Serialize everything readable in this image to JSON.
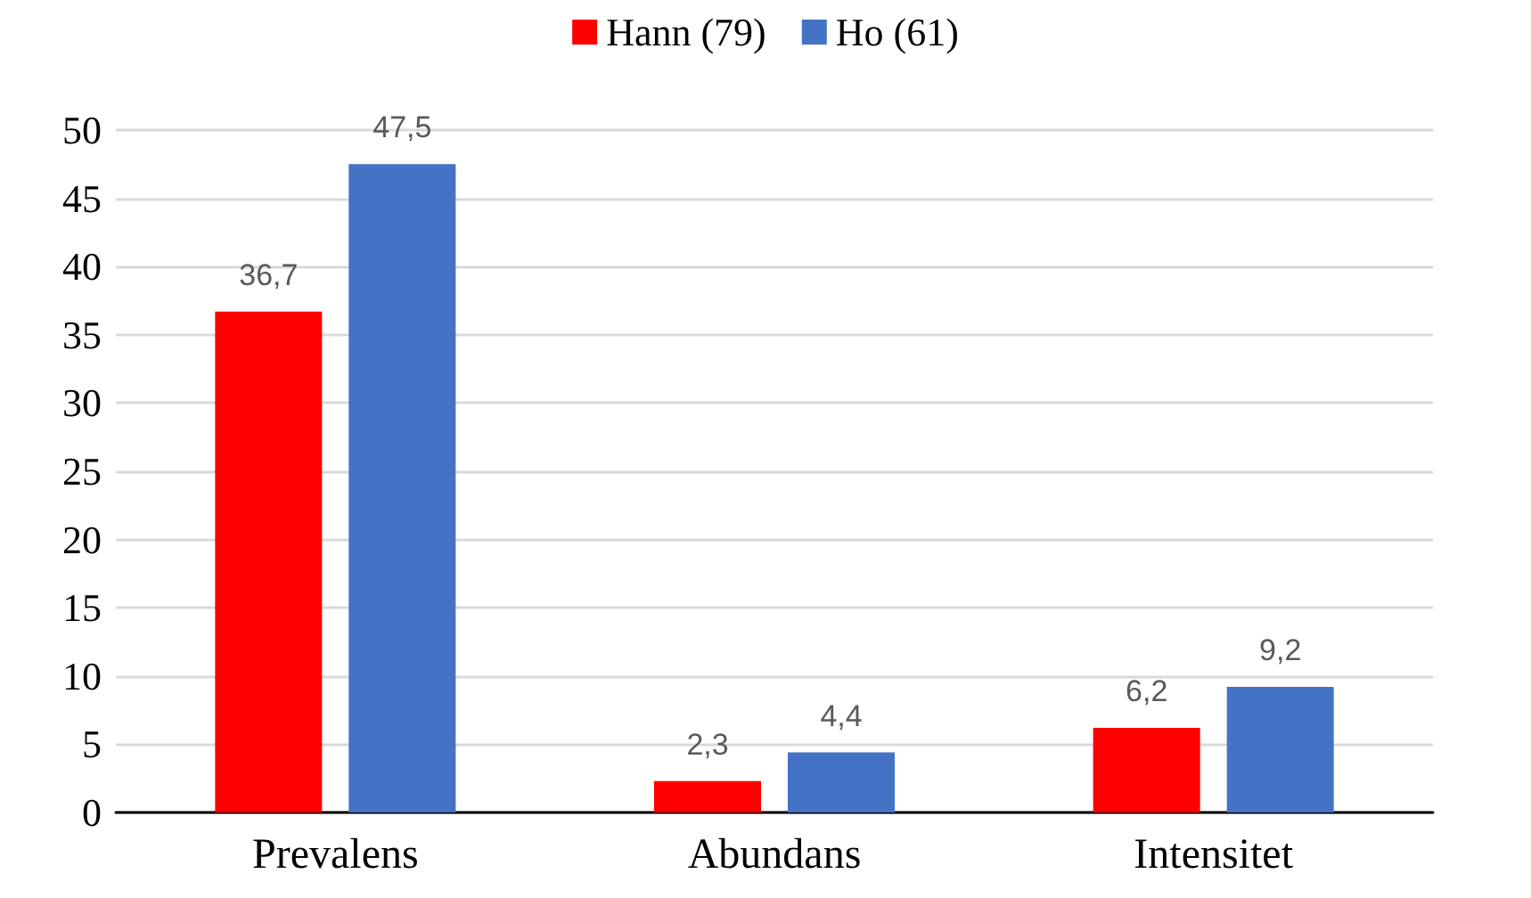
{
  "chart_data": {
    "type": "bar",
    "categories": [
      "Prevalens",
      "Abundans",
      "Intensitet"
    ],
    "series": [
      {
        "name": "Hann (79)",
        "color": "#ff0000",
        "values": [
          36.7,
          2.3,
          6.2
        ],
        "value_labels": [
          "36,7",
          "2,3",
          "6,2"
        ]
      },
      {
        "name": "Ho (61)",
        "color": "#4472c4",
        "values": [
          47.5,
          4.4,
          9.2
        ],
        "value_labels": [
          "47,5",
          "4,4",
          "9,2"
        ]
      }
    ],
    "ylim": [
      0,
      50
    ],
    "yticks": [
      0,
      5,
      10,
      15,
      20,
      25,
      30,
      35,
      40,
      45,
      50
    ],
    "grid": "y",
    "legend": "top"
  }
}
